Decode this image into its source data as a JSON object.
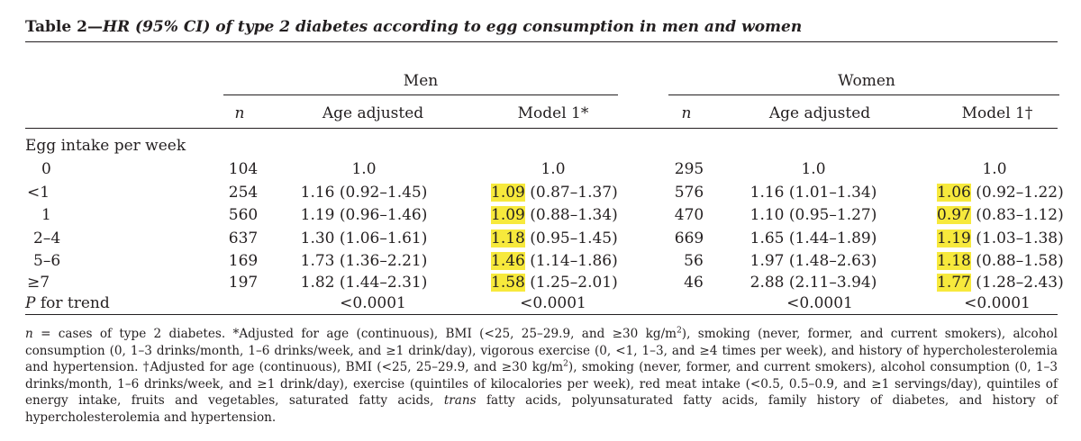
{
  "table": {
    "title_lead": "Table 2—",
    "title_rest": "HR (95% CI) of type 2 diabetes according to egg consumption in men and women",
    "groups": [
      "Men",
      "Women"
    ],
    "col_n": "n",
    "col_age": "Age adjusted",
    "col_model_men": "Model 1*",
    "col_model_women": "Model 1†",
    "section_label": "Egg intake per week",
    "rows": [
      {
        "label": "0",
        "men_n": "104",
        "men_age": "1.0",
        "men_m1_hr": "1.0",
        "men_m1_ci": "",
        "women_n": "295",
        "women_age": "1.0",
        "women_m1_hr": "1.0",
        "women_m1_ci": ""
      },
      {
        "label": "<1",
        "men_n": "254",
        "men_age": "1.16 (0.92–1.45)",
        "men_m1_hr": "1.09",
        "men_m1_ci": " (0.87–1.37)",
        "women_n": "576",
        "women_age": "1.16 (1.01–1.34)",
        "women_m1_hr": "1.06",
        "women_m1_ci": " (0.92–1.22)"
      },
      {
        "label": "1",
        "men_n": "560",
        "men_age": "1.19 (0.96–1.46)",
        "men_m1_hr": "1.09",
        "men_m1_ci": " (0.88–1.34)",
        "women_n": "470",
        "women_age": "1.10 (0.95–1.27)",
        "women_m1_hr": "0.97",
        "women_m1_ci": " (0.83–1.12)"
      },
      {
        "label": "2–4",
        "men_n": "637",
        "men_age": "1.30 (1.06–1.61)",
        "men_m1_hr": "1.18",
        "men_m1_ci": " (0.95–1.45)",
        "women_n": "669",
        "women_age": "1.65 (1.44–1.89)",
        "women_m1_hr": "1.19",
        "women_m1_ci": " (1.03–1.38)"
      },
      {
        "label": "5–6",
        "men_n": "169",
        "men_age": "1.73 (1.36–2.21)",
        "men_m1_hr": "1.46",
        "men_m1_ci": " (1.14–1.86)",
        "women_n": "56",
        "women_age": "1.97 (1.48–2.63)",
        "women_m1_hr": "1.18",
        "women_m1_ci": " (0.88–1.58)"
      },
      {
        "label": "≥7",
        "men_n": "197",
        "men_age": "1.82 (1.44–2.31)",
        "men_m1_hr": "1.58",
        "men_m1_ci": " (1.25–2.01)",
        "women_n": "46",
        "women_age": "2.88 (2.11–3.94)",
        "women_m1_hr": "1.77",
        "women_m1_ci": " (1.28–2.43)"
      }
    ],
    "trend": {
      "label_p": "P",
      "label_rest": " for trend",
      "men_age": "<0.0001",
      "men_m1": "<0.0001",
      "women_age": "<0.0001",
      "women_m1": "<0.0001"
    },
    "highlight_color": "#f7e93c"
  },
  "footnote": {
    "n_sym": "n",
    "p1_a": " = cases of type 2 diabetes. *Adjusted for age (continuous), BMI (<25, 25–29.9, and ≥30 kg/m",
    "sup1": "2",
    "p1_b": "), smoking (never, former, and current smokers), alcohol consumption (0, 1–3 drinks/month, 1–6 drinks/week, and ≥1 drink/day), vigorous exercise (0, <1, 1–3, and ≥4 times per week), and history of hypercholesterolemia and hypertension. †Adjusted for age (continuous), BMI (<25, 25–29.9, and ≥30 kg/m",
    "sup2": "2",
    "p1_c": "), smoking (never, former, and current smokers), alcohol consumption (0, 1–3 drinks/month, 1–6 drinks/week, and ≥1 drink/day), exercise (quintiles of kilocalories per week), red meat intake (<0.5, 0.5–0.9, and ≥1 servings/day), quintiles of energy intake, fruits and vegetables, saturated fatty acids, ",
    "trans_word": "trans",
    "p1_d": " fatty acids, polyunsaturated fatty acids, family history of diabetes, and history of hypercholesterolemia and hypertension."
  }
}
